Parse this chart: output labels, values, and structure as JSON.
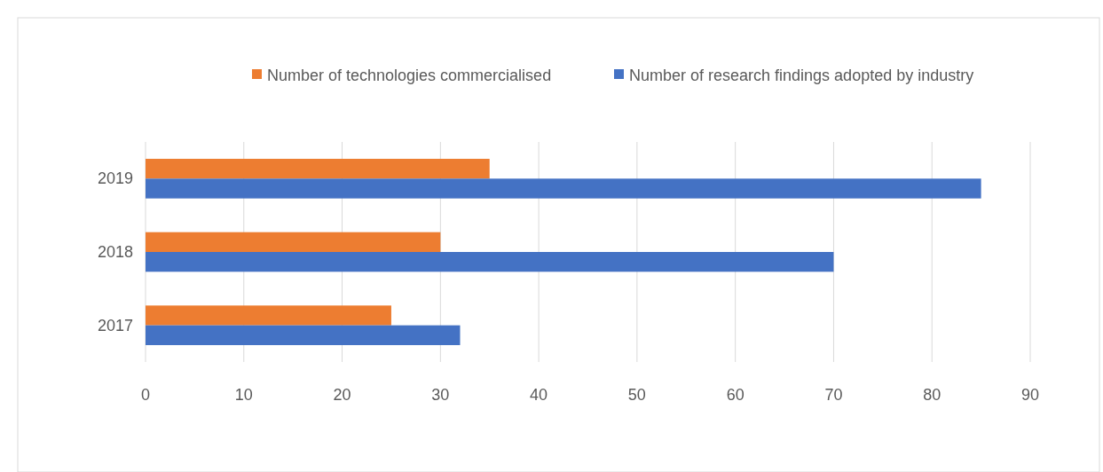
{
  "chart_data": {
    "type": "bar",
    "orientation": "horizontal",
    "categories": [
      "2019",
      "2018",
      "2017"
    ],
    "series": [
      {
        "name": "Number of technologies commercialised",
        "color": "#ed7d31",
        "values": [
          35,
          30,
          25
        ]
      },
      {
        "name": "Number of research findings adopted by industry",
        "color": "#4472c4",
        "values": [
          85,
          70,
          32
        ]
      }
    ],
    "xlim": [
      0,
      90
    ],
    "xticks": [
      0,
      10,
      20,
      30,
      40,
      50,
      60,
      70,
      80,
      90
    ],
    "grid": "x",
    "legend": "top"
  }
}
